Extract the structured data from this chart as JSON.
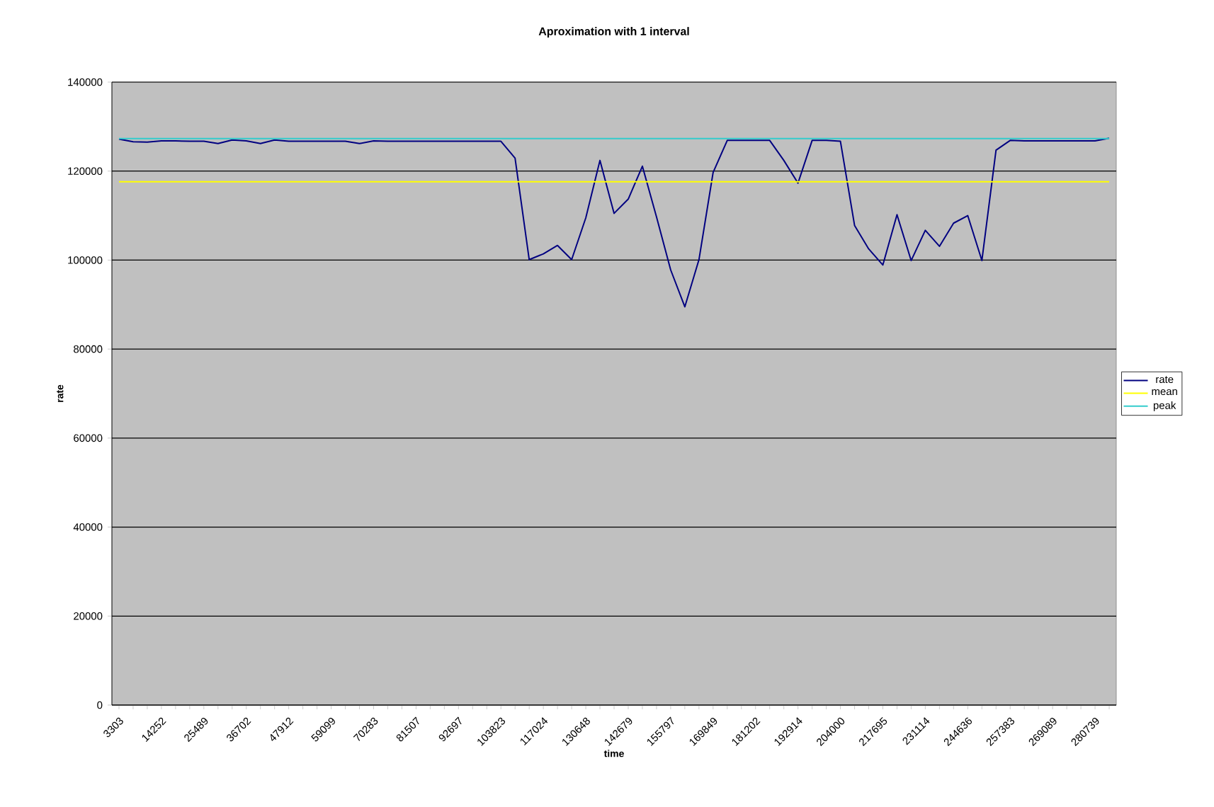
{
  "chart_data": {
    "type": "line",
    "title": "Aproximation with 1 interval",
    "xlabel": "time",
    "ylabel": "rate",
    "categories": [
      "3303",
      null,
      null,
      "14252",
      null,
      null,
      "25489",
      null,
      null,
      "36702",
      null,
      null,
      "47912",
      null,
      null,
      "59099",
      null,
      null,
      "70283",
      null,
      null,
      "81507",
      null,
      null,
      "92697",
      null,
      null,
      "103823",
      null,
      null,
      "117024",
      null,
      null,
      "130648",
      null,
      null,
      "142679",
      null,
      null,
      "155797",
      null,
      null,
      "169849",
      null,
      null,
      "181202",
      null,
      null,
      "192914",
      null,
      null,
      "204000",
      null,
      null,
      "217695",
      null,
      null,
      "231114",
      null,
      null,
      "244636",
      null,
      null,
      "257383",
      null,
      null,
      "269089",
      null,
      null,
      "280739",
      null
    ],
    "series": [
      {
        "name": "rate",
        "color": "#000080",
        "values": [
          127200,
          126600,
          126500,
          126800,
          126800,
          126700,
          126700,
          126200,
          127000,
          126800,
          126200,
          127000,
          126700,
          126700,
          126700,
          126700,
          126700,
          126200,
          126800,
          126700,
          126700,
          126700,
          126700,
          126700,
          126700,
          126700,
          126700,
          126700,
          122900,
          100100,
          101400,
          103300,
          100100,
          109500,
          122400,
          110500,
          113700,
          121100,
          109700,
          97800,
          89500,
          100100,
          119700,
          126900,
          126900,
          126900,
          126900,
          122400,
          117300,
          126900,
          126900,
          126700,
          107800,
          102500,
          98900,
          110200,
          99900,
          106700,
          103100,
          108300,
          110000,
          99900,
          124700,
          126900,
          126800,
          126800,
          126800,
          126800,
          126800,
          126800,
          127400
        ]
      },
      {
        "name": "mean",
        "color": "#ffff00",
        "values": [
          117600,
          117600,
          117600,
          117600,
          117600,
          117600,
          117600,
          117600,
          117600,
          117600,
          117600,
          117600,
          117600,
          117600,
          117600,
          117600,
          117600,
          117600,
          117600,
          117600,
          117600,
          117600,
          117600,
          117600,
          117600,
          117600,
          117600,
          117600,
          117600,
          117600,
          117600,
          117600,
          117600,
          117600,
          117600,
          117600,
          117600,
          117600,
          117600,
          117600,
          117600,
          117600,
          117600,
          117600,
          117600,
          117600,
          117600,
          117600,
          117600,
          117600,
          117600,
          117600,
          117600,
          117600,
          117600,
          117600,
          117600,
          117600,
          117600,
          117600,
          117600,
          117600,
          117600,
          117600,
          117600,
          117600,
          117600,
          117600,
          117600,
          117600,
          117600
        ]
      },
      {
        "name": "peak",
        "color": "#33cccc",
        "values": [
          127300,
          127300,
          127300,
          127300,
          127300,
          127300,
          127300,
          127300,
          127300,
          127300,
          127300,
          127300,
          127300,
          127300,
          127300,
          127300,
          127300,
          127300,
          127300,
          127300,
          127300,
          127300,
          127300,
          127300,
          127300,
          127300,
          127300,
          127300,
          127300,
          127300,
          127300,
          127300,
          127300,
          127300,
          127300,
          127300,
          127300,
          127300,
          127300,
          127300,
          127300,
          127300,
          127300,
          127300,
          127300,
          127300,
          127300,
          127300,
          127300,
          127300,
          127300,
          127300,
          127300,
          127300,
          127300,
          127300,
          127300,
          127300,
          127300,
          127300,
          127300,
          127300,
          127300,
          127300,
          127300,
          127300,
          127300,
          127300,
          127300,
          127300,
          127300
        ]
      }
    ],
    "ylim": [
      0,
      140000
    ],
    "yticks": [
      0,
      20000,
      40000,
      60000,
      80000,
      100000,
      120000,
      140000
    ],
    "grid": "y",
    "legend": "right",
    "marker": "none",
    "line_style": "solid"
  }
}
